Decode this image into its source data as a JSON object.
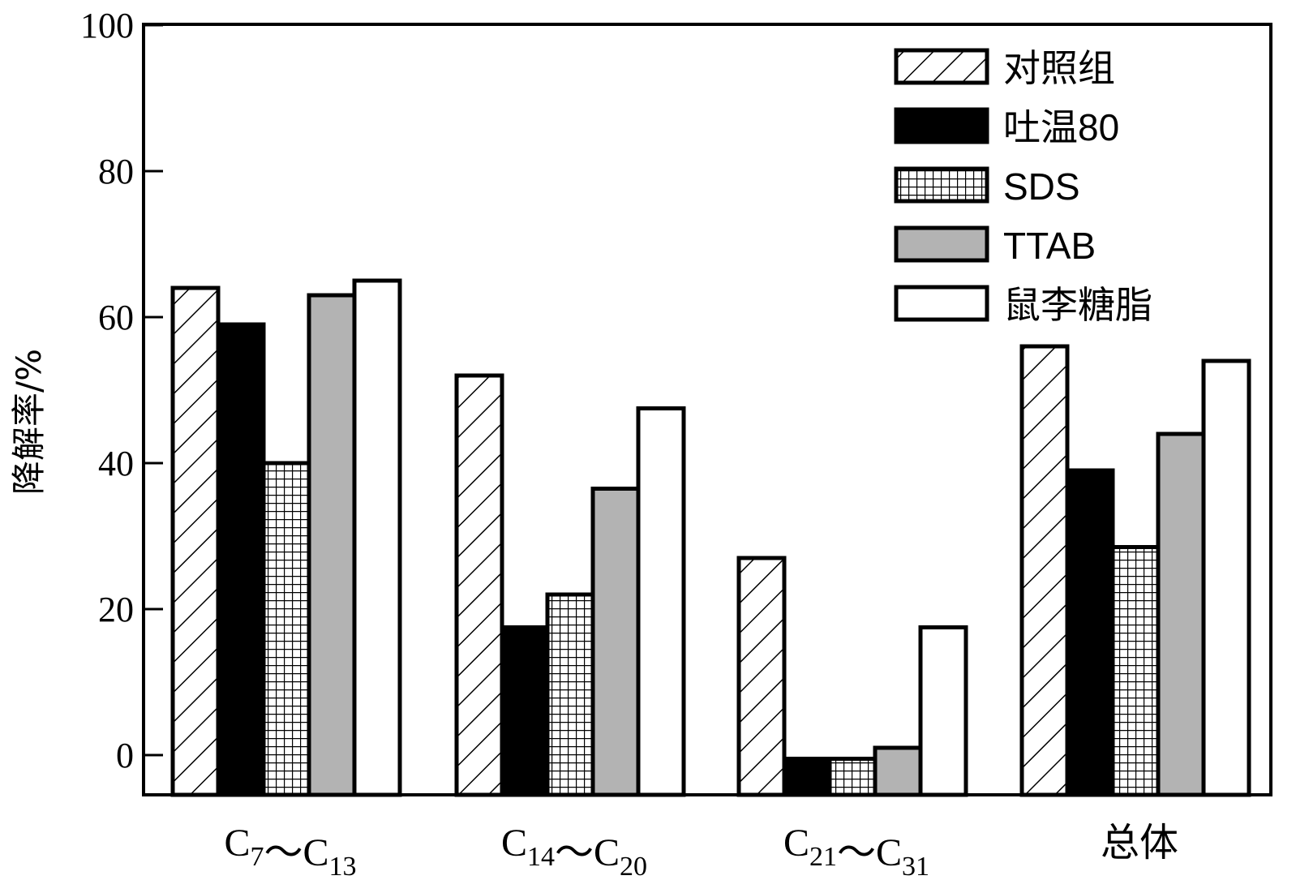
{
  "chart_data": {
    "type": "bar",
    "title": "",
    "xlabel": "",
    "ylabel": "降解率/%",
    "ylim": [
      -5,
      100
    ],
    "yticks": [
      0,
      20,
      40,
      60,
      80,
      100
    ],
    "ytick_labels": [
      "0",
      "20",
      "40",
      "60",
      "80",
      "100"
    ],
    "categories": [
      {
        "pre": "C",
        "a": "7",
        "sep": "～C",
        "b": "13"
      },
      {
        "pre": "C",
        "a": "14",
        "sep": "～C",
        "b": "20"
      },
      {
        "pre": "C",
        "a": "21",
        "sep": "～C",
        "b": "31"
      },
      {
        "text": "总体"
      }
    ],
    "series": [
      {
        "name": "对照组",
        "pattern": "hatch",
        "values": [
          64,
          52,
          27,
          56
        ]
      },
      {
        "name": "吐温80",
        "pattern": "solid-black",
        "values": [
          59,
          17.5,
          -0.5,
          39
        ]
      },
      {
        "name": "SDS",
        "pattern": "grid",
        "values": [
          40,
          22,
          -0.5,
          28.5
        ]
      },
      {
        "name": "TTAB",
        "pattern": "gray",
        "values": [
          63,
          36.5,
          1,
          44
        ]
      },
      {
        "name": "鼠李糖脂",
        "pattern": "white",
        "values": [
          65,
          47.5,
          17.5,
          54
        ]
      }
    ],
    "legend_position": "top-right",
    "grid": false
  }
}
